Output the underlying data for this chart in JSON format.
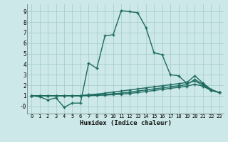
{
  "xlabel": "Humidex (Indice chaleur)",
  "bg_color": "#cce8e8",
  "grid_color": "#aacece",
  "line_color": "#1e6b60",
  "xlim": [
    -0.5,
    23.5
  ],
  "ylim": [
    -0.7,
    9.7
  ],
  "xticks": [
    0,
    1,
    2,
    3,
    4,
    5,
    6,
    7,
    8,
    9,
    10,
    11,
    12,
    13,
    14,
    15,
    16,
    17,
    18,
    19,
    20,
    21,
    22,
    23
  ],
  "yticks": [
    0,
    1,
    2,
    3,
    4,
    5,
    6,
    7,
    8,
    9
  ],
  "ytick_labels": [
    "-0",
    "1",
    "2",
    "3",
    "4",
    "5",
    "6",
    "7",
    "8",
    "9"
  ],
  "series": [
    {
      "x": [
        0,
        1,
        2,
        3,
        4,
        5,
        6,
        7,
        8,
        9,
        10,
        11,
        12,
        13,
        14,
        15,
        16,
        17,
        18,
        19,
        20,
        21,
        22,
        23
      ],
      "y": [
        1.0,
        0.9,
        0.6,
        0.8,
        -0.1,
        0.3,
        0.3,
        4.1,
        3.6,
        6.7,
        6.8,
        9.1,
        9.0,
        8.9,
        7.5,
        5.1,
        4.9,
        3.0,
        2.9,
        2.2,
        2.4,
        2.0,
        1.5,
        1.3
      ]
    },
    {
      "x": [
        0,
        1,
        2,
        3,
        4,
        5,
        6,
        7,
        8,
        9,
        10,
        11,
        12,
        13,
        14,
        15,
        16,
        17,
        18,
        19,
        20,
        21,
        22,
        23
      ],
      "y": [
        1.0,
        1.0,
        1.0,
        1.0,
        1.0,
        1.0,
        1.0,
        1.1,
        1.15,
        1.25,
        1.35,
        1.45,
        1.55,
        1.65,
        1.75,
        1.85,
        1.95,
        2.05,
        2.15,
        2.25,
        2.9,
        2.2,
        1.6,
        1.3
      ]
    },
    {
      "x": [
        0,
        1,
        2,
        3,
        4,
        5,
        6,
        7,
        8,
        9,
        10,
        11,
        12,
        13,
        14,
        15,
        16,
        17,
        18,
        19,
        20,
        21,
        22,
        23
      ],
      "y": [
        1.0,
        1.0,
        1.0,
        1.0,
        1.0,
        1.0,
        1.0,
        1.05,
        1.08,
        1.12,
        1.18,
        1.25,
        1.35,
        1.45,
        1.55,
        1.65,
        1.75,
        1.85,
        1.95,
        2.05,
        2.55,
        2.1,
        1.55,
        1.3
      ]
    },
    {
      "x": [
        0,
        1,
        2,
        3,
        4,
        5,
        6,
        7,
        8,
        9,
        10,
        11,
        12,
        13,
        14,
        15,
        16,
        17,
        18,
        19,
        20,
        21,
        22,
        23
      ],
      "y": [
        1.0,
        1.0,
        1.0,
        1.0,
        1.0,
        1.0,
        1.0,
        1.0,
        1.03,
        1.06,
        1.1,
        1.15,
        1.22,
        1.3,
        1.4,
        1.5,
        1.6,
        1.7,
        1.8,
        1.9,
        2.1,
        1.9,
        1.5,
        1.3
      ]
    }
  ]
}
